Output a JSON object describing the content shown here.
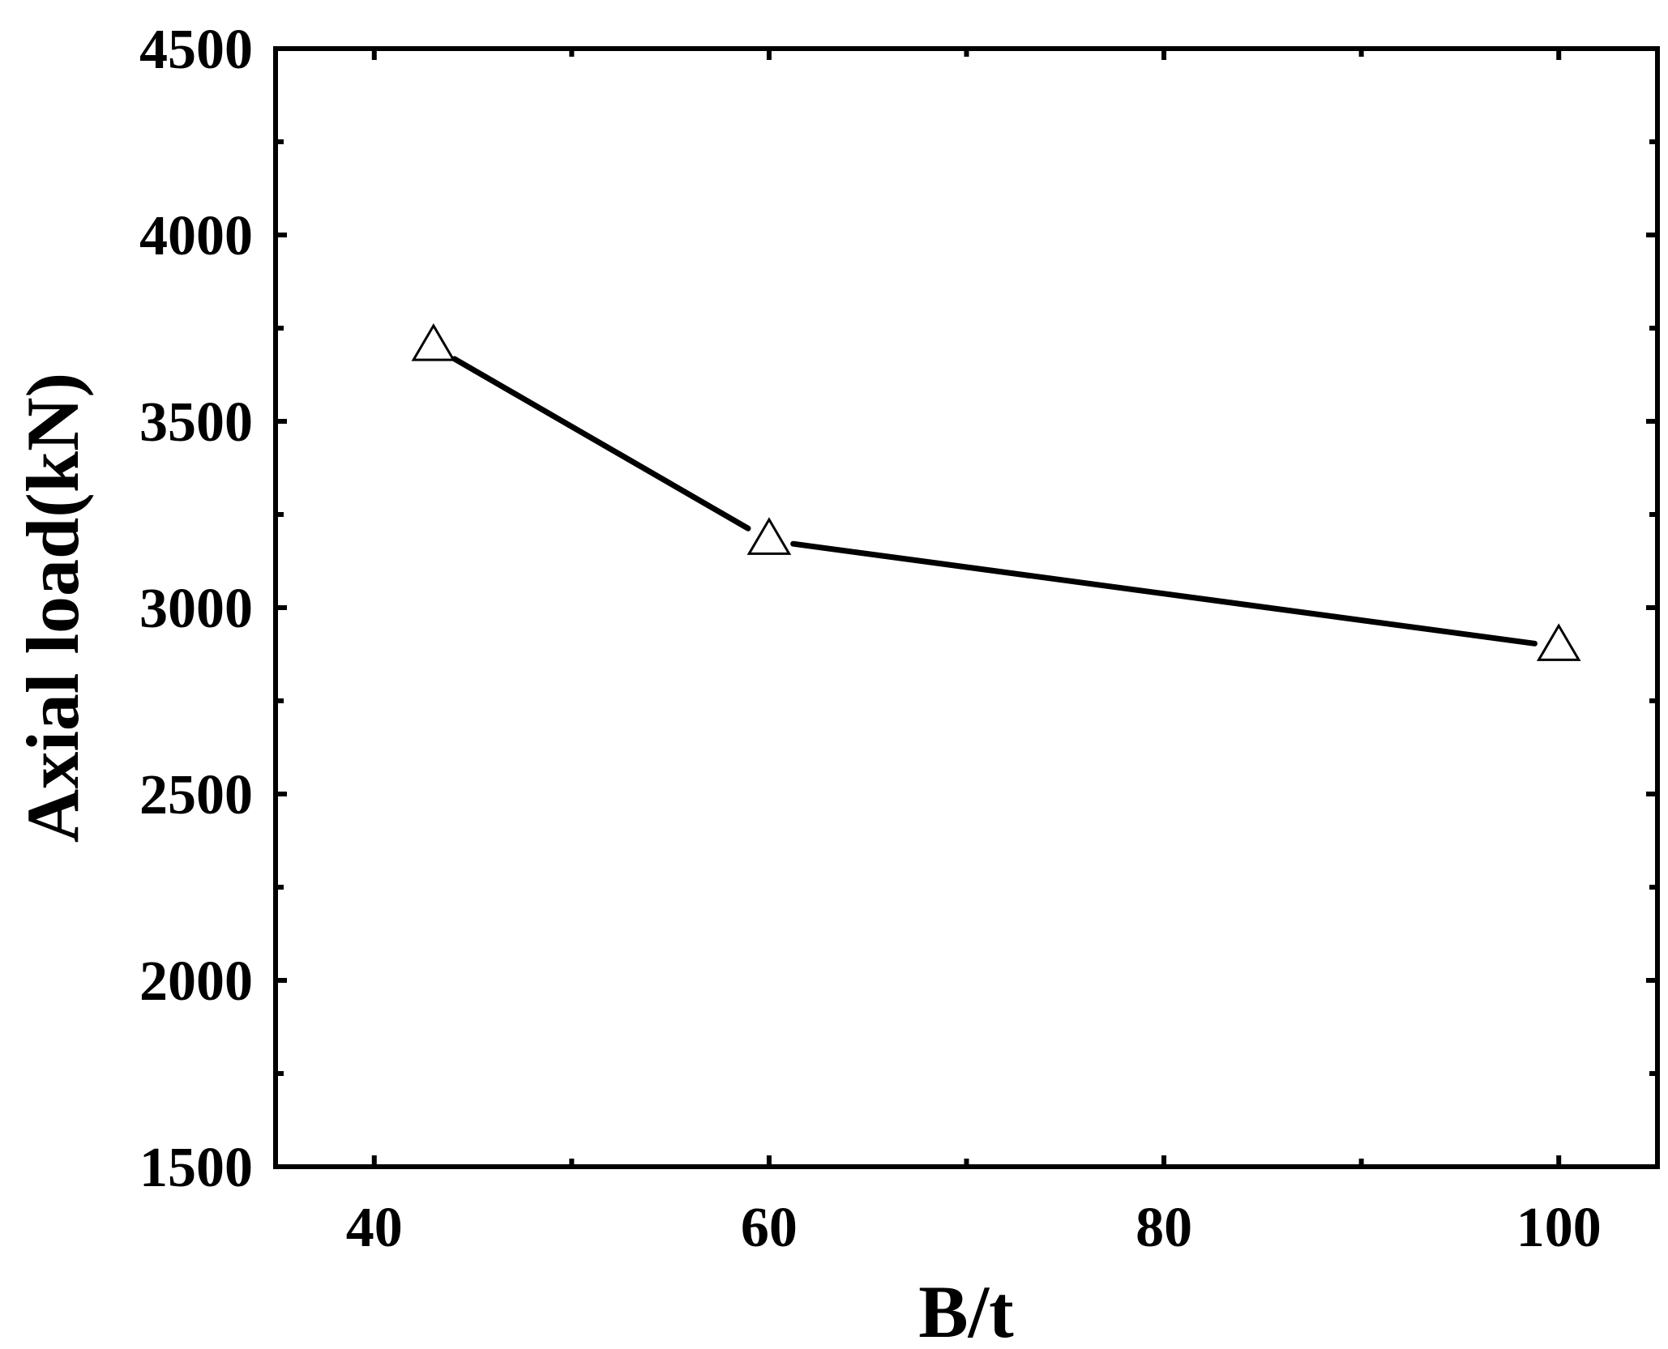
{
  "chart_data": {
    "type": "line",
    "title": "",
    "xlabel": "B/t",
    "ylabel": "Axial load(kN)",
    "xlim": [
      35,
      105
    ],
    "ylim": [
      1500,
      4500
    ],
    "xticks": [
      40,
      60,
      80,
      100
    ],
    "xtick_labels": [
      "40",
      "60",
      "80",
      "100"
    ],
    "yticks": [
      1500,
      2000,
      2500,
      3000,
      3500,
      4000,
      4500
    ],
    "ytick_labels": [
      "1500",
      "2000",
      "2500",
      "3000",
      "3500",
      "4000",
      "4500"
    ],
    "x_minor_step": 10,
    "y_minor_step": 250,
    "grid": false,
    "legend": "none",
    "series": [
      {
        "x": [
          43,
          60,
          100
        ],
        "y": [
          3700,
          3180,
          2895
        ],
        "marker": "open-triangle",
        "color": "#000000"
      }
    ]
  }
}
